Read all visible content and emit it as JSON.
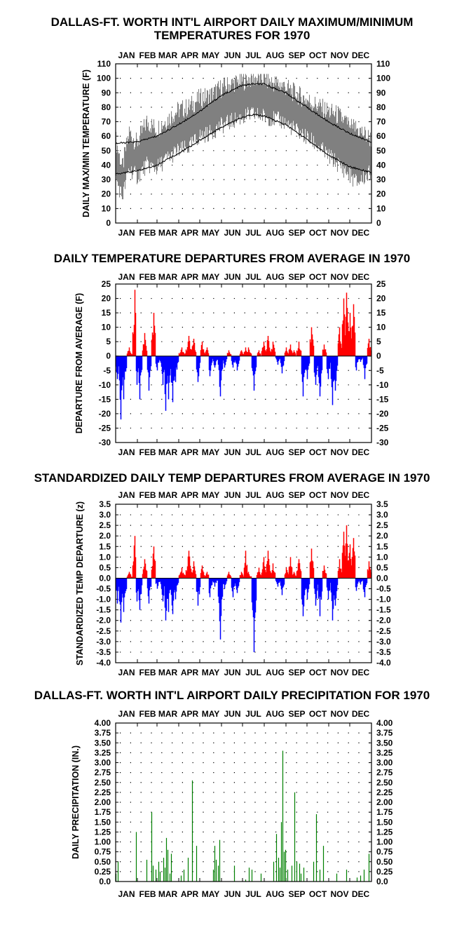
{
  "months": [
    "JAN",
    "FEB",
    "MAR",
    "APR",
    "MAY",
    "JUN",
    "JUL",
    "AUG",
    "SEP",
    "OCT",
    "NOV",
    "DEC"
  ],
  "colors": {
    "positive": "#ff0000",
    "negative": "#0000ff",
    "precip": "#008000",
    "range": "#808080",
    "normal": "#000000"
  },
  "chart_data": [
    {
      "type": "area",
      "title": "DALLAS-FT. WORTH INT'L AIRPORT DAILY MAXIMUM/MINIMUM TEMPERATURES FOR 1970",
      "ylabel": "DAILY MAX/MIN TEMPERATURE (F)",
      "xlabel": "",
      "ylim": [
        0,
        110
      ],
      "yticks": [
        "0",
        "10",
        "20",
        "30",
        "40",
        "50",
        "60",
        "70",
        "80",
        "90",
        "100",
        "110"
      ],
      "x_period": "1970-01-01 to 1970-12-31 (daily)",
      "grid": true,
      "series": [
        {
          "name": "",
          "kind": "daily max/min range (gray band)",
          "keypoints_max": [
            [
              1,
              57
            ],
            [
              10,
              38
            ],
            [
              20,
              63
            ],
            [
              31,
              55
            ],
            [
              45,
              70
            ],
            [
              59,
              65
            ],
            [
              75,
              72
            ],
            [
              90,
              78
            ],
            [
              105,
              80
            ],
            [
              120,
              86
            ],
            [
              135,
              88
            ],
            [
              150,
              93
            ],
            [
              165,
              96
            ],
            [
              180,
              98
            ],
            [
              195,
              100
            ],
            [
              210,
              100
            ],
            [
              225,
              97
            ],
            [
              240,
              95
            ],
            [
              255,
              90
            ],
            [
              270,
              86
            ],
            [
              285,
              82
            ],
            [
              300,
              78
            ],
            [
              315,
              75
            ],
            [
              330,
              70
            ],
            [
              345,
              65
            ],
            [
              365,
              58
            ]
          ],
          "keypoints_min": [
            [
              1,
              30
            ],
            [
              10,
              18
            ],
            [
              20,
              38
            ],
            [
              31,
              32
            ],
            [
              45,
              40
            ],
            [
              59,
              38
            ],
            [
              75,
              45
            ],
            [
              90,
              50
            ],
            [
              105,
              52
            ],
            [
              120,
              60
            ],
            [
              135,
              62
            ],
            [
              150,
              67
            ],
            [
              165,
              70
            ],
            [
              180,
              73
            ],
            [
              195,
              75
            ],
            [
              210,
              74
            ],
            [
              225,
              72
            ],
            [
              240,
              70
            ],
            [
              255,
              65
            ],
            [
              270,
              60
            ],
            [
              285,
              55
            ],
            [
              300,
              48
            ],
            [
              315,
              42
            ],
            [
              330,
              35
            ],
            [
              345,
              28
            ],
            [
              365,
              35
            ]
          ]
        },
        {
          "name": "",
          "kind": "normal max (black line)",
          "keypoints": [
            [
              1,
              55
            ],
            [
              31,
              56
            ],
            [
              59,
              60
            ],
            [
              90,
              68
            ],
            [
              120,
              77
            ],
            [
              151,
              88
            ],
            [
              181,
              95
            ],
            [
              196,
              96
            ],
            [
              212,
              96
            ],
            [
              243,
              90
            ],
            [
              273,
              80
            ],
            [
              304,
              70
            ],
            [
              334,
              62
            ],
            [
              365,
              56
            ]
          ]
        },
        {
          "name": "",
          "kind": "normal min (black line)",
          "keypoints": [
            [
              1,
              34
            ],
            [
              31,
              36
            ],
            [
              59,
              40
            ],
            [
              90,
              48
            ],
            [
              120,
              57
            ],
            [
              151,
              66
            ],
            [
              181,
              73
            ],
            [
              196,
              75
            ],
            [
              212,
              74
            ],
            [
              243,
              68
            ],
            [
              273,
              58
            ],
            [
              304,
              47
            ],
            [
              334,
              39
            ],
            [
              365,
              35
            ]
          ]
        }
      ]
    },
    {
      "type": "bar",
      "title": "DAILY TEMPERATURE DEPARTURES FROM AVERAGE IN 1970",
      "ylabel": "DEPARTURE FROM AVERAGE (F)",
      "ylim": [
        -30,
        25
      ],
      "yticks": [
        "-30",
        "-25",
        "-20",
        "-15",
        "-10",
        "-5",
        "0",
        "5",
        "10",
        "15",
        "20",
        "25"
      ],
      "grid": true,
      "peaks": [
        [
          3,
          -8
        ],
        [
          8,
          -22
        ],
        [
          12,
          -15
        ],
        [
          20,
          3
        ],
        [
          28,
          23
        ],
        [
          31,
          -10
        ],
        [
          35,
          -15
        ],
        [
          42,
          8
        ],
        [
          48,
          -12
        ],
        [
          55,
          15
        ],
        [
          60,
          -5
        ],
        [
          68,
          -10
        ],
        [
          72,
          -19
        ],
        [
          76,
          -15
        ],
        [
          82,
          -16
        ],
        [
          86,
          -9
        ],
        [
          95,
          3
        ],
        [
          105,
          7
        ],
        [
          112,
          6
        ],
        [
          118,
          -9
        ],
        [
          124,
          5
        ],
        [
          131,
          3
        ],
        [
          135,
          -7
        ],
        [
          142,
          -4
        ],
        [
          150,
          -14
        ],
        [
          156,
          -4
        ],
        [
          162,
          2
        ],
        [
          168,
          -4
        ],
        [
          174,
          -5
        ],
        [
          180,
          2
        ],
        [
          186,
          3
        ],
        [
          190,
          3
        ],
        [
          198,
          -12
        ],
        [
          205,
          2
        ],
        [
          212,
          5
        ],
        [
          218,
          7
        ],
        [
          225,
          5
        ],
        [
          232,
          -3
        ],
        [
          238,
          -6
        ],
        [
          244,
          3
        ],
        [
          250,
          4
        ],
        [
          255,
          2
        ],
        [
          262,
          5
        ],
        [
          268,
          -14
        ],
        [
          274,
          -8
        ],
        [
          280,
          10
        ],
        [
          286,
          -10
        ],
        [
          292,
          -14
        ],
        [
          298,
          4
        ],
        [
          304,
          -8
        ],
        [
          310,
          -17
        ],
        [
          314,
          -12
        ],
        [
          320,
          10
        ],
        [
          326,
          20
        ],
        [
          330,
          22
        ],
        [
          335,
          15
        ],
        [
          340,
          18
        ],
        [
          344,
          -5
        ],
        [
          350,
          -2
        ],
        [
          356,
          -8
        ],
        [
          362,
          6
        ]
      ]
    },
    {
      "type": "bar",
      "title": "STANDARDIZED DAILY TEMP DEPARTURES FROM AVERAGE IN 1970",
      "ylabel": "STANDARDIZED TEMP DEPARTURE (z)",
      "ylim": [
        -4.0,
        3.5
      ],
      "yticks": [
        "-4.0",
        "-3.5",
        "-3.0",
        "-2.5",
        "-2.0",
        "-1.5",
        "-1.0",
        "-0.5",
        "0.0",
        "0.5",
        "1.0",
        "1.5",
        "2.0",
        "2.5",
        "3.0",
        "3.5"
      ],
      "grid": true,
      "peaks": [
        [
          3,
          -1.2
        ],
        [
          8,
          -2.1
        ],
        [
          12,
          -1.6
        ],
        [
          20,
          0.3
        ],
        [
          28,
          2.0
        ],
        [
          31,
          -1.1
        ],
        [
          35,
          -1.5
        ],
        [
          42,
          0.9
        ],
        [
          48,
          -1.2
        ],
        [
          55,
          1.5
        ],
        [
          60,
          -0.5
        ],
        [
          68,
          -1.1
        ],
        [
          72,
          -2.0
        ],
        [
          76,
          -1.6
        ],
        [
          82,
          -1.7
        ],
        [
          86,
          -1.0
        ],
        [
          95,
          0.5
        ],
        [
          105,
          1.3
        ],
        [
          112,
          0.8
        ],
        [
          118,
          -1.3
        ],
        [
          124,
          0.6
        ],
        [
          131,
          0.3
        ],
        [
          135,
          -0.9
        ],
        [
          142,
          -0.4
        ],
        [
          150,
          -2.9
        ],
        [
          156,
          -0.5
        ],
        [
          162,
          0.3
        ],
        [
          168,
          -0.9
        ],
        [
          174,
          -0.7
        ],
        [
          180,
          0.3
        ],
        [
          186,
          1.3
        ],
        [
          190,
          0.3
        ],
        [
          198,
          -3.5
        ],
        [
          205,
          0.5
        ],
        [
          212,
          1.0
        ],
        [
          218,
          1.3
        ],
        [
          225,
          0.7
        ],
        [
          232,
          -0.4
        ],
        [
          238,
          -0.8
        ],
        [
          244,
          0.5
        ],
        [
          250,
          1.0
        ],
        [
          255,
          0.3
        ],
        [
          262,
          0.9
        ],
        [
          268,
          -1.8
        ],
        [
          274,
          -1.0
        ],
        [
          280,
          1.4
        ],
        [
          286,
          -1.3
        ],
        [
          292,
          -1.8
        ],
        [
          298,
          0.6
        ],
        [
          304,
          -1.0
        ],
        [
          310,
          -2.0
        ],
        [
          314,
          -1.3
        ],
        [
          320,
          0.9
        ],
        [
          326,
          2.2
        ],
        [
          330,
          2.5
        ],
        [
          335,
          1.6
        ],
        [
          340,
          1.9
        ],
        [
          344,
          -0.6
        ],
        [
          350,
          -0.3
        ],
        [
          356,
          -0.9
        ],
        [
          362,
          0.8
        ]
      ]
    },
    {
      "type": "bar",
      "title": "DALLAS-FT. WORTH INT'L AIRPORT DAILY PRECIPITATION FOR 1970",
      "ylabel": "DAILY PRECIPITATION (IN.)",
      "ylim": [
        0.0,
        4.0
      ],
      "yticks": [
        "0.0",
        "0.25",
        "0.50",
        "0.75",
        "1.00",
        "1.25",
        "1.50",
        "1.75",
        "2.00",
        "2.25",
        "2.50",
        "2.75",
        "3.00",
        "3.25",
        "3.50",
        "3.75",
        "4.00"
      ],
      "grid": true,
      "events": [
        [
          1,
          0.2
        ],
        [
          4,
          0.5
        ],
        [
          30,
          1.25
        ],
        [
          45,
          0.55
        ],
        [
          52,
          1.75
        ],
        [
          54,
          0.4
        ],
        [
          58,
          0.3
        ],
        [
          62,
          0.5
        ],
        [
          64,
          0.25
        ],
        [
          69,
          0.6
        ],
        [
          71,
          0.35
        ],
        [
          73,
          1.1
        ],
        [
          75,
          0.8
        ],
        [
          78,
          0.2
        ],
        [
          80,
          0.7
        ],
        [
          94,
          0.15
        ],
        [
          98,
          0.3
        ],
        [
          104,
          0.6
        ],
        [
          110,
          2.55
        ],
        [
          116,
          0.9
        ],
        [
          140,
          0.3
        ],
        [
          142,
          0.9
        ],
        [
          144,
          0.55
        ],
        [
          147,
          0.4
        ],
        [
          149,
          1.05
        ],
        [
          170,
          0.4
        ],
        [
          186,
          0.05
        ],
        [
          191,
          0.35
        ],
        [
          195,
          0.3
        ],
        [
          208,
          0.2
        ],
        [
          226,
          0.5
        ],
        [
          230,
          1.2
        ],
        [
          233,
          0.6
        ],
        [
          235,
          0.35
        ],
        [
          237,
          1.5
        ],
        [
          239,
          3.3
        ],
        [
          241,
          0.75
        ],
        [
          243,
          0.8
        ],
        [
          246,
          0.3
        ],
        [
          252,
          0.4
        ],
        [
          256,
          2.25
        ],
        [
          259,
          0.5
        ],
        [
          263,
          0.45
        ],
        [
          265,
          0.2
        ],
        [
          269,
          0.35
        ],
        [
          283,
          0.5
        ],
        [
          287,
          1.7
        ],
        [
          292,
          0.3
        ],
        [
          297,
          0.9
        ],
        [
          316,
          0.2
        ],
        [
          330,
          0.3
        ],
        [
          345,
          0.1
        ],
        [
          350,
          0.15
        ],
        [
          355,
          0.3
        ],
        [
          362,
          0.7
        ]
      ]
    }
  ]
}
